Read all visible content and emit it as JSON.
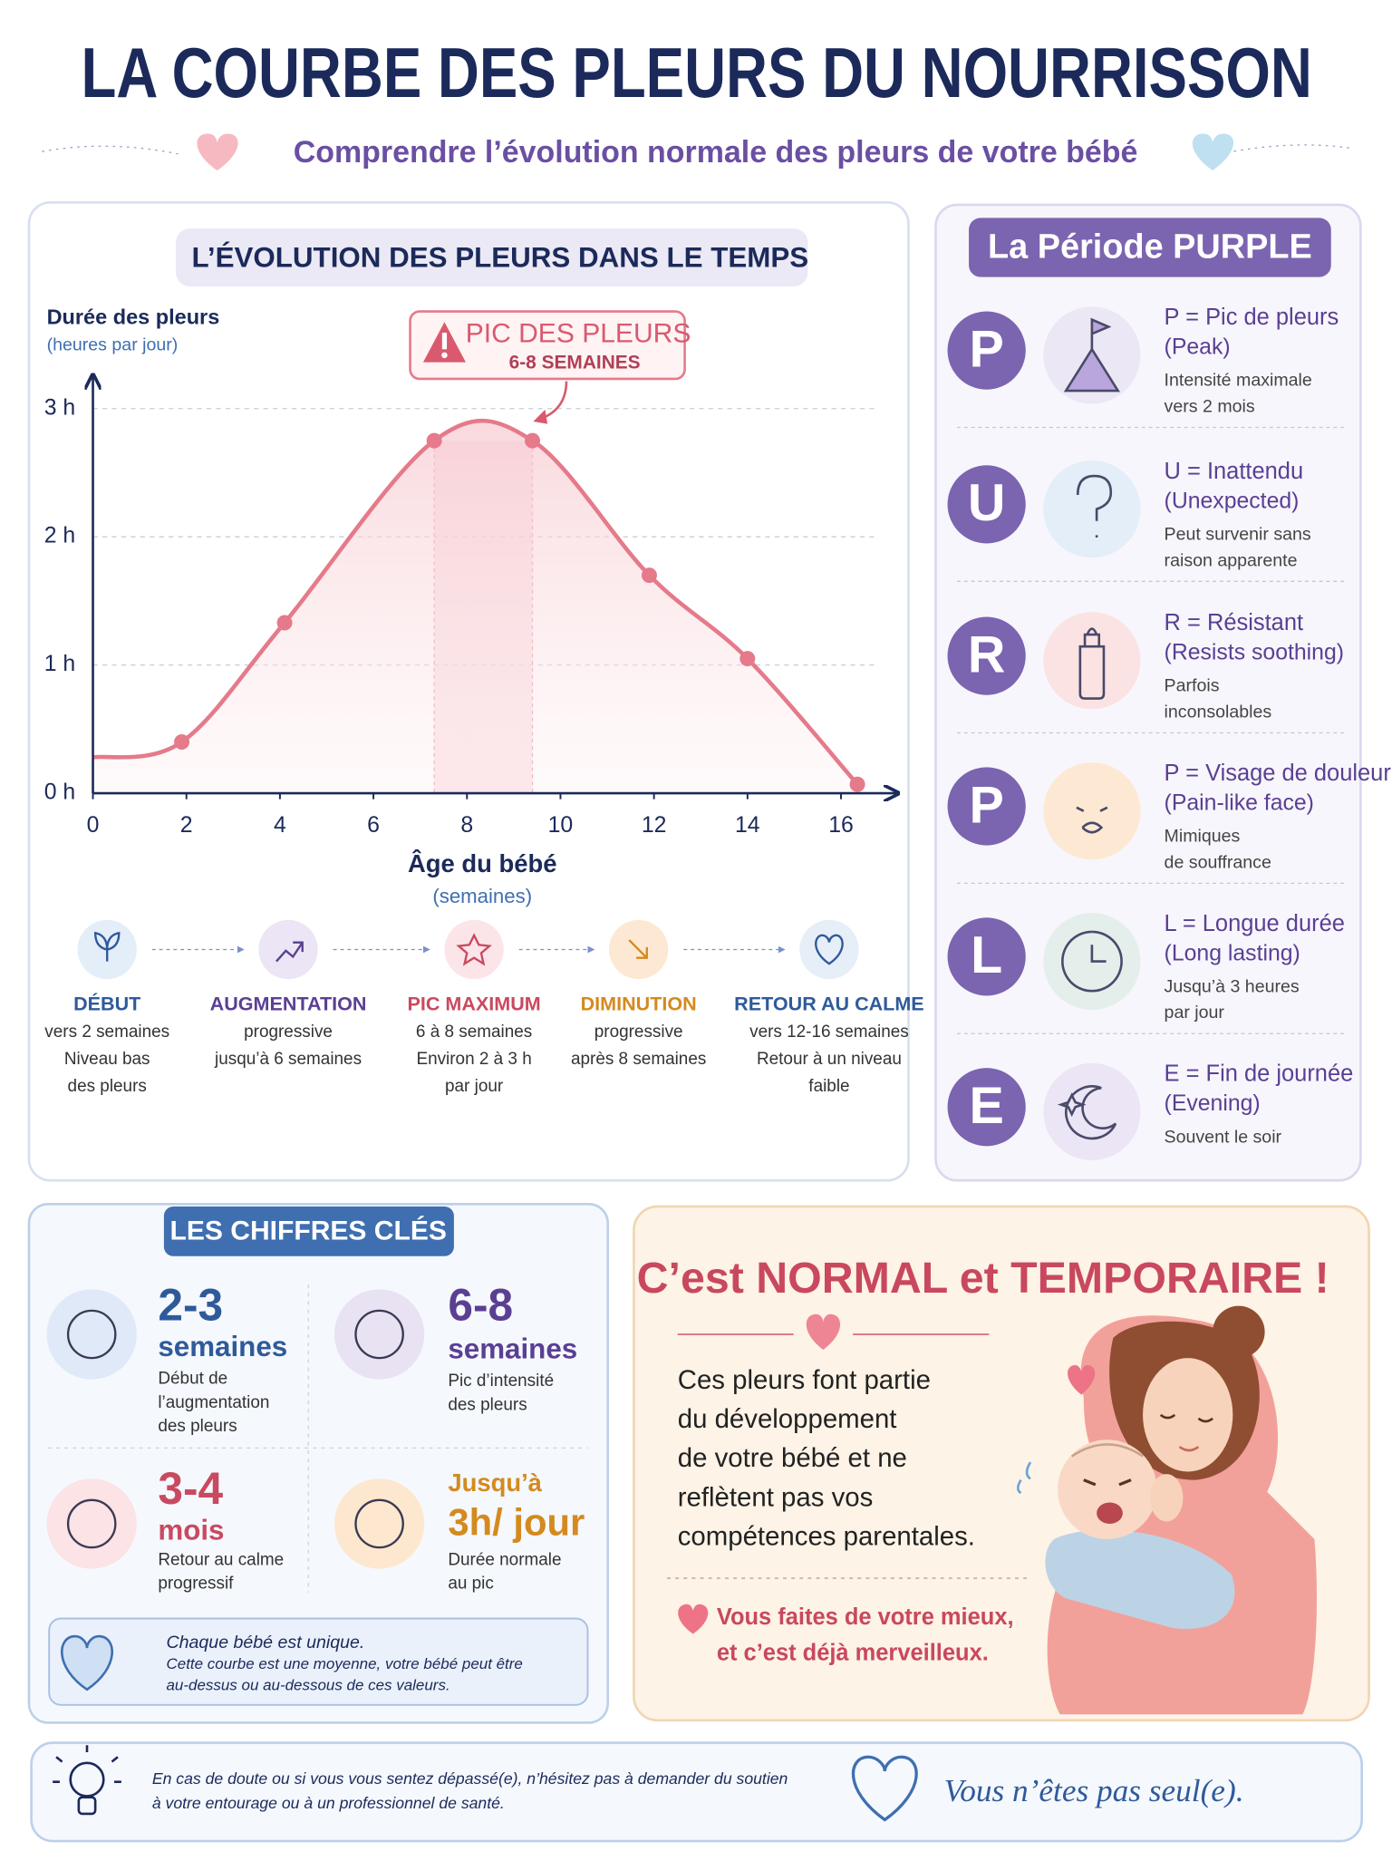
{
  "header": {
    "title": "LA COURBE DES PLEURS DU NOURRISSON",
    "subtitle": "Comprendre l’évolution normale des pleurs de votre bébé"
  },
  "chart_data": {
    "type": "line",
    "title": "L’ÉVOLUTION DES PLEURS DANS LE TEMPS",
    "y_label": "Durée des pleurs",
    "y_label_sub": "(heures par jour)",
    "x_label": "Âge du bébé",
    "x_label_sub": "(semaines)",
    "annotation": {
      "title": "PIC DES PLEURS",
      "subtitle": "6-8 SEMAINES"
    },
    "x": [
      0,
      1.9,
      4.1,
      7.3,
      9.4,
      11.9,
      14.0,
      16.35
    ],
    "values": [
      0.28,
      0.4,
      1.33,
      2.75,
      2.75,
      1.7,
      1.05,
      0.07
    ],
    "color": "#e57a8a",
    "xlim": [
      0,
      17
    ],
    "ylim": [
      0,
      3.25
    ],
    "xticks": [
      0,
      2,
      4,
      6,
      8,
      10,
      12,
      14,
      16
    ],
    "yticks": [
      {
        "value": 0,
        "label": "0 h"
      },
      {
        "value": 1,
        "label": "1 h"
      },
      {
        "value": 2,
        "label": "2 h"
      },
      {
        "value": 3,
        "label": "3 h"
      }
    ],
    "grid": true
  },
  "stages": [
    {
      "title": "DÉBUT",
      "lines": [
        "vers 2 semaines",
        "Niveau bas",
        "des pleurs"
      ]
    },
    {
      "title": "AUGMENTATION",
      "lines": [
        "progressive",
        "jusqu’à 6 semaines"
      ]
    },
    {
      "title": "PIC MAXIMUM",
      "lines": [
        "6 à 8 semaines",
        "Environ 2 à 3 h",
        "par jour"
      ]
    },
    {
      "title": "DIMINUTION",
      "lines": [
        "progressive",
        "après 8 semaines"
      ]
    },
    {
      "title": "RETOUR AU CALME",
      "lines": [
        "vers 12-16 semaines",
        "Retour à un niveau",
        "faible"
      ]
    }
  ],
  "purple": {
    "title": "La Période PURPLE",
    "items": [
      {
        "letter": "P",
        "title": "P = Pic de pleurs",
        "subtitle": "(Peak)",
        "lines": [
          "Intensité maximale",
          "vers 2 mois"
        ]
      },
      {
        "letter": "U",
        "title": "U = Inattendu",
        "subtitle": "(Unexpected)",
        "lines": [
          "Peut survenir sans",
          "raison apparente"
        ]
      },
      {
        "letter": "R",
        "title": "R = Résistant",
        "subtitle": "(Resists soothing)",
        "lines": [
          "Parfois",
          "inconsolables"
        ]
      },
      {
        "letter": "P",
        "title": "P = Visage de douleur",
        "subtitle": "(Pain-like face)",
        "lines": [
          "Mimiques",
          "de souffrance"
        ]
      },
      {
        "letter": "L",
        "title": "L = Longue durée",
        "subtitle": "(Long lasting)",
        "lines": [
          "Jusqu’à 3 heures",
          "par jour"
        ]
      },
      {
        "letter": "E",
        "title": "E = Fin de journée",
        "subtitle": "(Evening)",
        "lines": [
          "Souvent le soir"
        ]
      }
    ]
  },
  "key_figures": {
    "title": "LES CHIFFRES CLÉS",
    "items": [
      {
        "number": "2-3",
        "unit": "semaines",
        "lines": [
          "Début de",
          "l’augmentation",
          "des pleurs"
        ]
      },
      {
        "number": "6-8",
        "unit": "semaines",
        "lines": [
          "Pic d’intensité",
          "des pleurs"
        ]
      },
      {
        "number": "3-4",
        "unit": "mois",
        "lines": [
          "Retour au calme",
          "progressif"
        ]
      },
      {
        "number": "Jusqu’à",
        "unit": "3h/ jour",
        "lines": [
          "Durée normale",
          "au pic"
        ]
      }
    ],
    "note": {
      "title": "Chaque bébé est unique.",
      "lines": [
        "Cette courbe est une moyenne, votre bébé peut être",
        "au-dessus ou au-dessous de ces valeurs."
      ]
    }
  },
  "normal": {
    "title": "C’est NORMAL et TEMPORAIRE !",
    "lines": [
      "Ces pleurs font partie",
      "du développement",
      "de votre bébé et ne",
      "reflètent pas vos",
      "compétences parentales."
    ],
    "closing": [
      "Vous faites de votre mieux,",
      "et c’est déjà merveilleux."
    ]
  },
  "footer": {
    "lines": [
      "En cas de doute ou si vous vous sentez dépassé(e), n’hésitez pas à demander du soutien",
      "à votre entourage ou à un professionnel de santé."
    ],
    "message": "Vous n’êtes pas seul(e)."
  }
}
